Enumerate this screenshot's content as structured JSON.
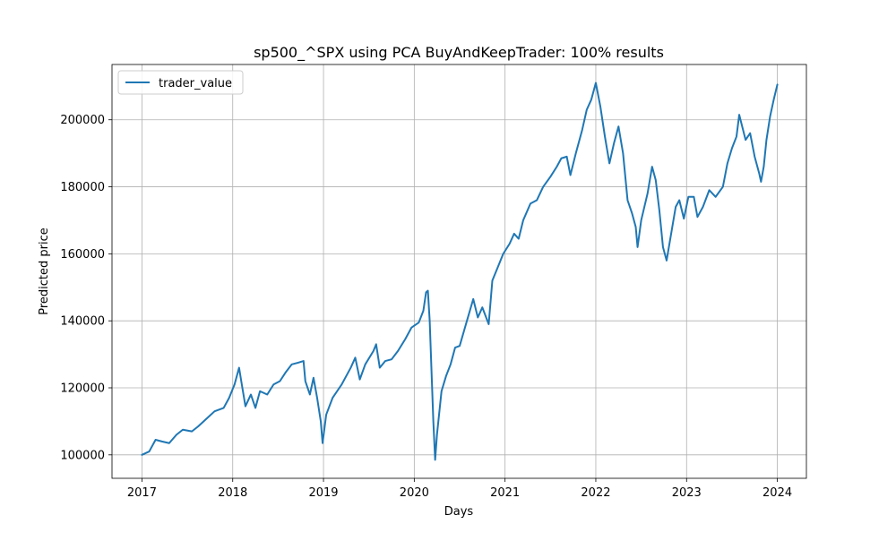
{
  "chart_data": {
    "type": "line",
    "title": "sp500_^SPX using PCA BuyAndKeepTrader: 100% results",
    "xlabel": "Days",
    "ylabel": "Predicted price",
    "xlim": [
      2016.67,
      2024.32
    ],
    "ylim": [
      93000,
      216500
    ],
    "x_ticks": [
      2017,
      2018,
      2019,
      2020,
      2021,
      2022,
      2023,
      2024
    ],
    "x_tick_labels": [
      "2017",
      "2018",
      "2019",
      "2020",
      "2021",
      "2022",
      "2023",
      "2024"
    ],
    "y_ticks": [
      100000,
      120000,
      140000,
      160000,
      180000,
      200000
    ],
    "y_tick_labels": [
      "100000",
      "120000",
      "140000",
      "160000",
      "180000",
      "200000"
    ],
    "grid": true,
    "legend_position": "upper-left",
    "colors": {
      "series": "#1f77b4",
      "grid": "#b0b0b0",
      "axes": "#000000"
    },
    "series": [
      {
        "name": "trader_value",
        "points": [
          [
            2017.0,
            100000
          ],
          [
            2017.08,
            101000
          ],
          [
            2017.15,
            104500
          ],
          [
            2017.22,
            104000
          ],
          [
            2017.3,
            103500
          ],
          [
            2017.38,
            106000
          ],
          [
            2017.45,
            107500
          ],
          [
            2017.55,
            107000
          ],
          [
            2017.62,
            108500
          ],
          [
            2017.7,
            110500
          ],
          [
            2017.8,
            113000
          ],
          [
            2017.9,
            114000
          ],
          [
            2017.96,
            117000
          ],
          [
            2018.02,
            121000
          ],
          [
            2018.07,
            126000
          ],
          [
            2018.1,
            121000
          ],
          [
            2018.14,
            114500
          ],
          [
            2018.2,
            118000
          ],
          [
            2018.25,
            114000
          ],
          [
            2018.3,
            119000
          ],
          [
            2018.38,
            118000
          ],
          [
            2018.45,
            121000
          ],
          [
            2018.52,
            122000
          ],
          [
            2018.58,
            124500
          ],
          [
            2018.65,
            127000
          ],
          [
            2018.72,
            127500
          ],
          [
            2018.78,
            128000
          ],
          [
            2018.8,
            122000
          ],
          [
            2018.85,
            118000
          ],
          [
            2018.89,
            123000
          ],
          [
            2018.93,
            117000
          ],
          [
            2018.97,
            110000
          ],
          [
            2018.99,
            103500
          ],
          [
            2019.03,
            112000
          ],
          [
            2019.1,
            117000
          ],
          [
            2019.2,
            121000
          ],
          [
            2019.3,
            126000
          ],
          [
            2019.35,
            129000
          ],
          [
            2019.4,
            122500
          ],
          [
            2019.46,
            127000
          ],
          [
            2019.55,
            131000
          ],
          [
            2019.58,
            133000
          ],
          [
            2019.62,
            126000
          ],
          [
            2019.68,
            128000
          ],
          [
            2019.75,
            128500
          ],
          [
            2019.82,
            131000
          ],
          [
            2019.9,
            134500
          ],
          [
            2019.97,
            138000
          ],
          [
            2020.05,
            139500
          ],
          [
            2020.1,
            143000
          ],
          [
            2020.13,
            148500
          ],
          [
            2020.15,
            149000
          ],
          [
            2020.17,
            140000
          ],
          [
            2020.19,
            125000
          ],
          [
            2020.21,
            110000
          ],
          [
            2020.23,
            98500
          ],
          [
            2020.25,
            106000
          ],
          [
            2020.3,
            119000
          ],
          [
            2020.35,
            123500
          ],
          [
            2020.4,
            127000
          ],
          [
            2020.45,
            132000
          ],
          [
            2020.5,
            132500
          ],
          [
            2020.58,
            140000
          ],
          [
            2020.65,
            146500
          ],
          [
            2020.7,
            141000
          ],
          [
            2020.75,
            144000
          ],
          [
            2020.82,
            139000
          ],
          [
            2020.86,
            152000
          ],
          [
            2020.92,
            156000
          ],
          [
            2020.98,
            160000
          ],
          [
            2021.05,
            163000
          ],
          [
            2021.1,
            166000
          ],
          [
            2021.15,
            164500
          ],
          [
            2021.2,
            170000
          ],
          [
            2021.28,
            175000
          ],
          [
            2021.35,
            176000
          ],
          [
            2021.42,
            180000
          ],
          [
            2021.5,
            183000
          ],
          [
            2021.57,
            186000
          ],
          [
            2021.62,
            188500
          ],
          [
            2021.68,
            189000
          ],
          [
            2021.72,
            183500
          ],
          [
            2021.78,
            190000
          ],
          [
            2021.85,
            197000
          ],
          [
            2021.9,
            203000
          ],
          [
            2021.95,
            206000
          ],
          [
            2022.0,
            211000
          ],
          [
            2022.05,
            204000
          ],
          [
            2022.1,
            195000
          ],
          [
            2022.15,
            187000
          ],
          [
            2022.2,
            193000
          ],
          [
            2022.25,
            198000
          ],
          [
            2022.3,
            190000
          ],
          [
            2022.35,
            176000
          ],
          [
            2022.4,
            172000
          ],
          [
            2022.44,
            168000
          ],
          [
            2022.46,
            162000
          ],
          [
            2022.5,
            170000
          ],
          [
            2022.57,
            178000
          ],
          [
            2022.62,
            186000
          ],
          [
            2022.66,
            182000
          ],
          [
            2022.7,
            173000
          ],
          [
            2022.74,
            162000
          ],
          [
            2022.78,
            158000
          ],
          [
            2022.83,
            166000
          ],
          [
            2022.88,
            174000
          ],
          [
            2022.92,
            176000
          ],
          [
            2022.97,
            170500
          ],
          [
            2023.02,
            177000
          ],
          [
            2023.08,
            177000
          ],
          [
            2023.12,
            171000
          ],
          [
            2023.18,
            174000
          ],
          [
            2023.25,
            179000
          ],
          [
            2023.32,
            177000
          ],
          [
            2023.4,
            180000
          ],
          [
            2023.45,
            187000
          ],
          [
            2023.5,
            191500
          ],
          [
            2023.55,
            195000
          ],
          [
            2023.58,
            201500
          ],
          [
            2023.65,
            194000
          ],
          [
            2023.7,
            196000
          ],
          [
            2023.75,
            189000
          ],
          [
            2023.8,
            184000
          ],
          [
            2023.82,
            181500
          ],
          [
            2023.85,
            186000
          ],
          [
            2023.88,
            194000
          ],
          [
            2023.92,
            201000
          ],
          [
            2023.96,
            206000
          ],
          [
            2024.0,
            210500
          ]
        ]
      }
    ]
  }
}
